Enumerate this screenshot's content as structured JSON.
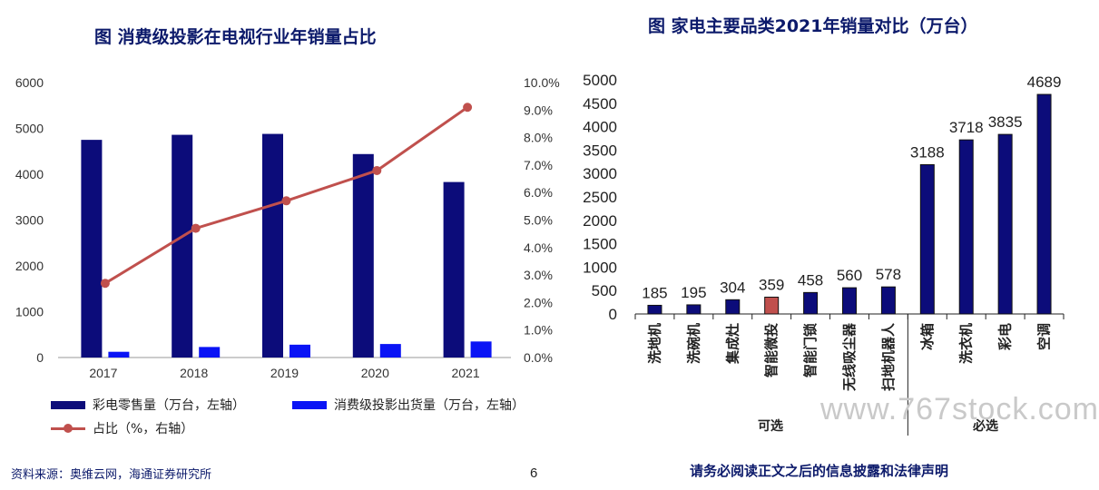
{
  "left": {
    "title": "图  消费级投影在电视行业年销量占比",
    "legend": {
      "tv": "彩电零售量（万台，左轴）",
      "projector": "消费级投影出货量（万台，左轴）",
      "ratio": "占比（%，右轴）"
    }
  },
  "right": {
    "title": "图  家电主要品类2021年销量对比（万台）",
    "group_optional": "可选",
    "group_required": "必选"
  },
  "footer": {
    "source": "资料来源：奥维云网，海通证券研究所",
    "page": "6",
    "disclaimer": "请务必阅读正文之后的信息披露和法律声明"
  },
  "watermark": "www.767stock.com",
  "colors": {
    "tv": "#0c0c7a",
    "projector": "#0a14f5",
    "ratio": "#c0504d",
    "highlight": "#c0504d"
  },
  "chart_data": [
    {
      "type": "bar",
      "categories": [
        "2017",
        "2018",
        "2019",
        "2020",
        "2021"
      ],
      "series": [
        {
          "name": "彩电零售量（万台，左轴）",
          "axis": "left",
          "values": [
            4750,
            4860,
            4880,
            4440,
            3830
          ]
        },
        {
          "name": "消费级投影出货量（万台，左轴）",
          "axis": "left",
          "values": [
            125,
            230,
            280,
            295,
            350
          ]
        },
        {
          "name": "占比（%，右轴）",
          "axis": "right",
          "type": "line",
          "values": [
            2.7,
            4.7,
            5.7,
            6.8,
            9.1
          ]
        }
      ],
      "ylim_left": [
        0,
        6000
      ],
      "yticks_left": [
        "0",
        "1000",
        "2000",
        "3000",
        "4000",
        "5000",
        "6000"
      ],
      "ylim_right": [
        0,
        10
      ],
      "yticks_right": [
        "0.0%",
        "1.0%",
        "2.0%",
        "3.0%",
        "4.0%",
        "5.0%",
        "6.0%",
        "7.0%",
        "8.0%",
        "9.0%",
        "10.0%"
      ],
      "grid": false,
      "legend": "bottom"
    },
    {
      "type": "bar",
      "categories": [
        "洗地机",
        "洗碗机",
        "集成灶",
        "智能微投",
        "智能门锁",
        "无线吸尘器",
        "扫地机器人",
        "冰箱",
        "洗衣机",
        "彩电",
        "空调"
      ],
      "values": [
        185,
        195,
        304,
        359,
        458,
        560,
        578,
        3188,
        3718,
        3835,
        4689
      ],
      "data_labels": [
        "185",
        "195",
        "304",
        "359",
        "458",
        "560",
        "578",
        "3188",
        "3718",
        "3835",
        "4689"
      ],
      "highlight_index": 3,
      "ylim": [
        0,
        5000
      ],
      "yticks": [
        "0",
        "500",
        "1000",
        "1500",
        "2000",
        "2500",
        "3000",
        "3500",
        "4000",
        "4500",
        "5000"
      ],
      "groups": [
        {
          "label": "可选",
          "from": 0,
          "to": 6
        },
        {
          "label": "必选",
          "from": 7,
          "to": 10
        }
      ],
      "grid": false
    }
  ]
}
